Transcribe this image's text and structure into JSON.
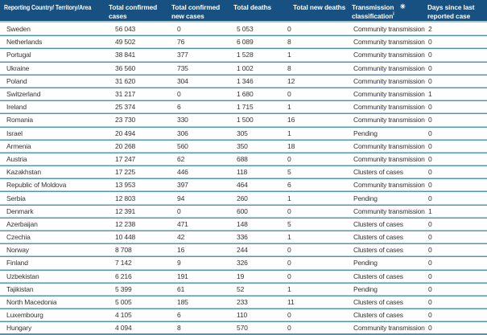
{
  "colors": {
    "header_bg": "#175181",
    "header_text": "#FFFFFF",
    "row_border_dark": "#4E93BA",
    "row_border_light": "#A9CEDF",
    "body_text": "#333333"
  },
  "table": {
    "columns": [
      {
        "label": "Reporting Country/ Territory/Area"
      },
      {
        "label": "Total confirmed cases"
      },
      {
        "label": "Total confirmed new cases"
      },
      {
        "label": "Total deaths"
      },
      {
        "label": "Total new deaths"
      },
      {
        "label_line1": "Transmission",
        "label_line2": "classification",
        "superscript": "i",
        "footnote_mark": "✳"
      },
      {
        "label": "Days since last reported case"
      }
    ],
    "row_keys": [
      "country",
      "total_confirmed_cases",
      "total_confirmed_new_cases",
      "total_deaths",
      "total_new_deaths",
      "transmission_classification",
      "days_since_last_reported_case"
    ],
    "rows": [
      {
        "country": "Sweden",
        "total_confirmed_cases": "56 043",
        "total_confirmed_new_cases": "0",
        "total_deaths": "5 053",
        "total_new_deaths": "0",
        "transmission_classification": "Community transmission",
        "days_since_last_reported_case": "2"
      },
      {
        "country": "Netherlands",
        "total_confirmed_cases": "49 502",
        "total_confirmed_new_cases": "76",
        "total_deaths": "6 089",
        "total_new_deaths": "8",
        "transmission_classification": "Community transmission",
        "days_since_last_reported_case": "0"
      },
      {
        "country": "Portugal",
        "total_confirmed_cases": "38 841",
        "total_confirmed_new_cases": "377",
        "total_deaths": "1 528",
        "total_new_deaths": "1",
        "transmission_classification": "Community transmission",
        "days_since_last_reported_case": "0"
      },
      {
        "country": "Ukraine",
        "total_confirmed_cases": "36 560",
        "total_confirmed_new_cases": "735",
        "total_deaths": "1 002",
        "total_new_deaths": "8",
        "transmission_classification": "Community transmission",
        "days_since_last_reported_case": "0"
      },
      {
        "country": "Poland",
        "total_confirmed_cases": "31 620",
        "total_confirmed_new_cases": "304",
        "total_deaths": "1 346",
        "total_new_deaths": "12",
        "transmission_classification": "Community transmission",
        "days_since_last_reported_case": "0"
      },
      {
        "country": "Switzerland",
        "total_confirmed_cases": "31 217",
        "total_confirmed_new_cases": "0",
        "total_deaths": "1 680",
        "total_new_deaths": "0",
        "transmission_classification": "Community transmission",
        "days_since_last_reported_case": "1"
      },
      {
        "country": "Ireland",
        "total_confirmed_cases": "25 374",
        "total_confirmed_new_cases": "6",
        "total_deaths": "1 715",
        "total_new_deaths": "1",
        "transmission_classification": "Community transmission",
        "days_since_last_reported_case": "0"
      },
      {
        "country": "Romania",
        "total_confirmed_cases": "23 730",
        "total_confirmed_new_cases": "330",
        "total_deaths": "1 500",
        "total_new_deaths": "16",
        "transmission_classification": "Community transmission",
        "days_since_last_reported_case": "0"
      },
      {
        "country": "Israel",
        "total_confirmed_cases": "20 494",
        "total_confirmed_new_cases": "306",
        "total_deaths": "305",
        "total_new_deaths": "1",
        "transmission_classification": "Pending",
        "days_since_last_reported_case": "0"
      },
      {
        "country": "Armenia",
        "total_confirmed_cases": "20 268",
        "total_confirmed_new_cases": "560",
        "total_deaths": "350",
        "total_new_deaths": "18",
        "transmission_classification": "Community transmission",
        "days_since_last_reported_case": "0"
      },
      {
        "country": "Austria",
        "total_confirmed_cases": "17 247",
        "total_confirmed_new_cases": "62",
        "total_deaths": "688",
        "total_new_deaths": "0",
        "transmission_classification": "Community transmission",
        "days_since_last_reported_case": "0"
      },
      {
        "country": "Kazakhstan",
        "total_confirmed_cases": "17 225",
        "total_confirmed_new_cases": "446",
        "total_deaths": "118",
        "total_new_deaths": "5",
        "transmission_classification": "Clusters of cases",
        "days_since_last_reported_case": "0"
      },
      {
        "country": "Republic of Moldova",
        "total_confirmed_cases": "13 953",
        "total_confirmed_new_cases": "397",
        "total_deaths": "464",
        "total_new_deaths": "6",
        "transmission_classification": "Community transmission",
        "days_since_last_reported_case": "0"
      },
      {
        "country": "Serbia",
        "total_confirmed_cases": "12 803",
        "total_confirmed_new_cases": "94",
        "total_deaths": "260",
        "total_new_deaths": "1",
        "transmission_classification": "Pending",
        "days_since_last_reported_case": "0"
      },
      {
        "country": "Denmark",
        "total_confirmed_cases": "12 391",
        "total_confirmed_new_cases": "0",
        "total_deaths": "600",
        "total_new_deaths": "0",
        "transmission_classification": "Community transmission",
        "days_since_last_reported_case": "1"
      },
      {
        "country": "Azerbaijan",
        "total_confirmed_cases": "12 238",
        "total_confirmed_new_cases": "471",
        "total_deaths": "148",
        "total_new_deaths": "5",
        "transmission_classification": "Clusters of cases",
        "days_since_last_reported_case": "0"
      },
      {
        "country": "Czechia",
        "total_confirmed_cases": "10 448",
        "total_confirmed_new_cases": "42",
        "total_deaths": "336",
        "total_new_deaths": "1",
        "transmission_classification": "Clusters of cases",
        "days_since_last_reported_case": "0"
      },
      {
        "country": "Norway",
        "total_confirmed_cases": "8 708",
        "total_confirmed_new_cases": "16",
        "total_deaths": "244",
        "total_new_deaths": "0",
        "transmission_classification": "Clusters of cases",
        "days_since_last_reported_case": "0"
      },
      {
        "country": "Finland",
        "total_confirmed_cases": "7 142",
        "total_confirmed_new_cases": "9",
        "total_deaths": "326",
        "total_new_deaths": "0",
        "transmission_classification": "Pending",
        "days_since_last_reported_case": "0"
      },
      {
        "country": "Uzbekistan",
        "total_confirmed_cases": "6 216",
        "total_confirmed_new_cases": "191",
        "total_deaths": "19",
        "total_new_deaths": "0",
        "transmission_classification": "Clusters of cases",
        "days_since_last_reported_case": "0"
      },
      {
        "country": "Tajikistan",
        "total_confirmed_cases": "5 399",
        "total_confirmed_new_cases": "61",
        "total_deaths": "52",
        "total_new_deaths": "1",
        "transmission_classification": "Pending",
        "days_since_last_reported_case": "0"
      },
      {
        "country": "North Macedonia",
        "total_confirmed_cases": "5 005",
        "total_confirmed_new_cases": "185",
        "total_deaths": "233",
        "total_new_deaths": "11",
        "transmission_classification": "Clusters of cases",
        "days_since_last_reported_case": "0"
      },
      {
        "country": "Luxembourg",
        "total_confirmed_cases": "4 105",
        "total_confirmed_new_cases": "6",
        "total_deaths": "110",
        "total_new_deaths": "0",
        "transmission_classification": "Clusters of cases",
        "days_since_last_reported_case": "0"
      },
      {
        "country": "Hungary",
        "total_confirmed_cases": "4 094",
        "total_confirmed_new_cases": "8",
        "total_deaths": "570",
        "total_new_deaths": "0",
        "transmission_classification": "Community transmission",
        "days_since_last_reported_case": "0"
      }
    ]
  }
}
